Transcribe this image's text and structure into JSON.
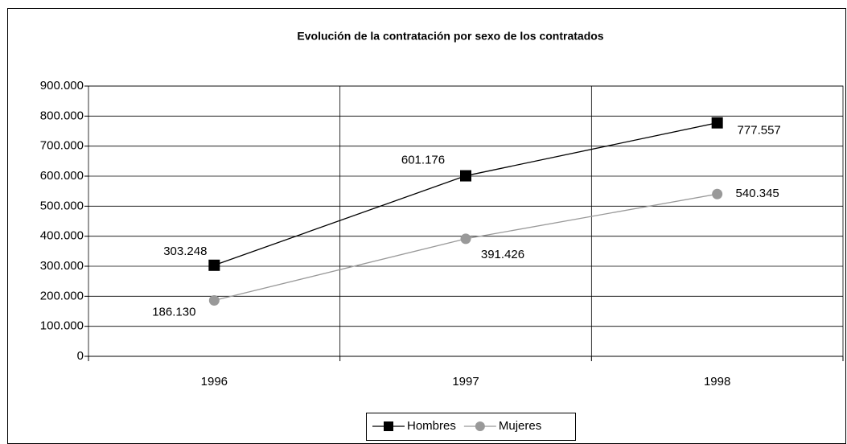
{
  "chart_data": {
    "type": "line",
    "title": "Evolución de la contratación por sexo de los contratados",
    "categories": [
      "1996",
      "1997",
      "1998"
    ],
    "series": [
      {
        "name": "Hombres",
        "color": "#000000",
        "marker": "square",
        "values": [
          303248,
          601176,
          777557
        ],
        "value_labels": [
          "303.248",
          "601.176",
          "777.557"
        ]
      },
      {
        "name": "Mujeres",
        "color": "#999999",
        "marker": "circle",
        "values": [
          186130,
          391426,
          540345
        ],
        "value_labels": [
          "186.130",
          "391.426",
          "540.345"
        ]
      }
    ],
    "ylim": [
      0,
      900000
    ],
    "yticks": [
      0,
      {
        "value": 100000,
        "label": "100.000"
      },
      {
        "value": 200000,
        "label": "200.000"
      },
      {
        "value": 300000,
        "label": "300.000"
      },
      {
        "value": 400000,
        "label": "400.000"
      },
      {
        "value": 500000,
        "label": "500.000"
      },
      {
        "value": 600000,
        "label": "600.000"
      },
      {
        "value": 700000,
        "label": "700.000"
      },
      {
        "value": 800000,
        "label": "800.000"
      },
      {
        "value": 900000,
        "label": "900.000"
      }
    ],
    "grid": true,
    "legend": "bottom"
  }
}
